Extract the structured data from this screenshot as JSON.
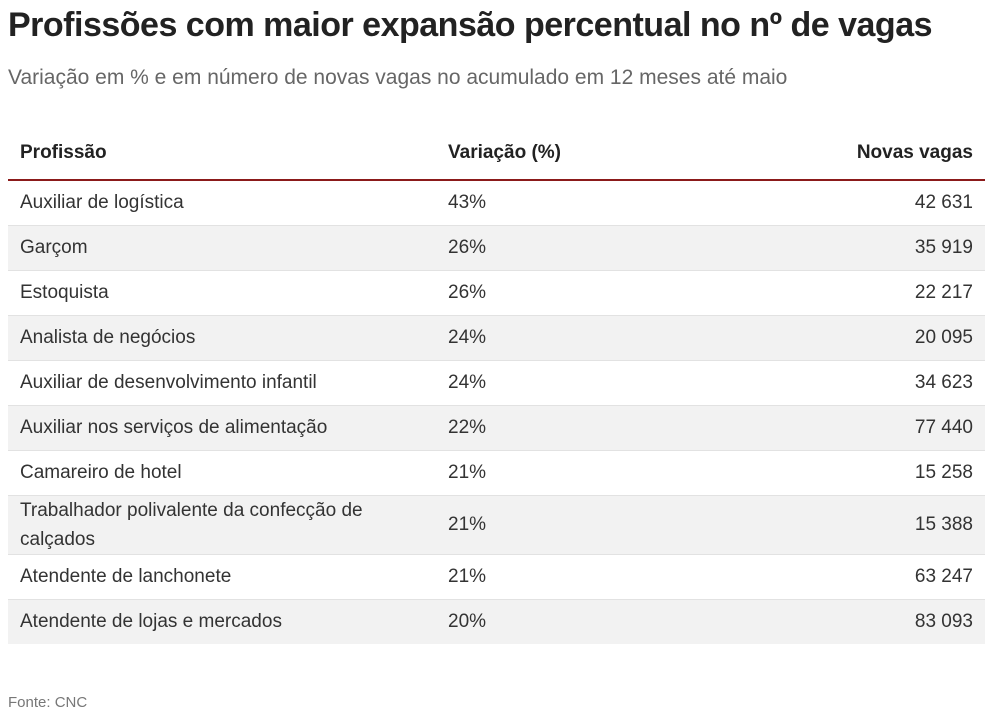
{
  "header": {
    "title": "Profissões com maior expansão percentual no nº de vagas",
    "subtitle": "Variação em % e em número de novas vagas no acumulado em 12 meses até maio"
  },
  "footer": {
    "source": "Fonte: CNC"
  },
  "colors": {
    "header_rule": "#8b1a1a",
    "stripe": "#f2f2f2"
  },
  "chart_data": {
    "type": "table",
    "title": "Profissões com maior expansão percentual no nº de vagas",
    "subtitle": "Variação em % e em número de novas vagas no acumulado em 12 meses até maio",
    "columns": [
      "Profissão",
      "Variação (%)",
      "Novas vagas"
    ],
    "rows": [
      [
        "Auxiliar de logística",
        "43%",
        "42 631"
      ],
      [
        "Garçom",
        "26%",
        "35 919"
      ],
      [
        "Estoquista",
        "26%",
        "22 217"
      ],
      [
        "Analista de negócios",
        "24%",
        "20 095"
      ],
      [
        "Auxiliar de desenvolvimento infantil",
        "24%",
        "34 623"
      ],
      [
        "Auxiliar nos serviços de alimentação",
        "22%",
        "77 440"
      ],
      [
        "Camareiro de hotel",
        "21%",
        "15 258"
      ],
      [
        "Trabalhador polivalente da confecção de calçados",
        "21%",
        "15 388"
      ],
      [
        "Atendente de lanchonete",
        "21%",
        "63 247"
      ],
      [
        "Atendente de lojas e mercados",
        "20%",
        "83 093"
      ]
    ],
    "source": "Fonte: CNC"
  }
}
